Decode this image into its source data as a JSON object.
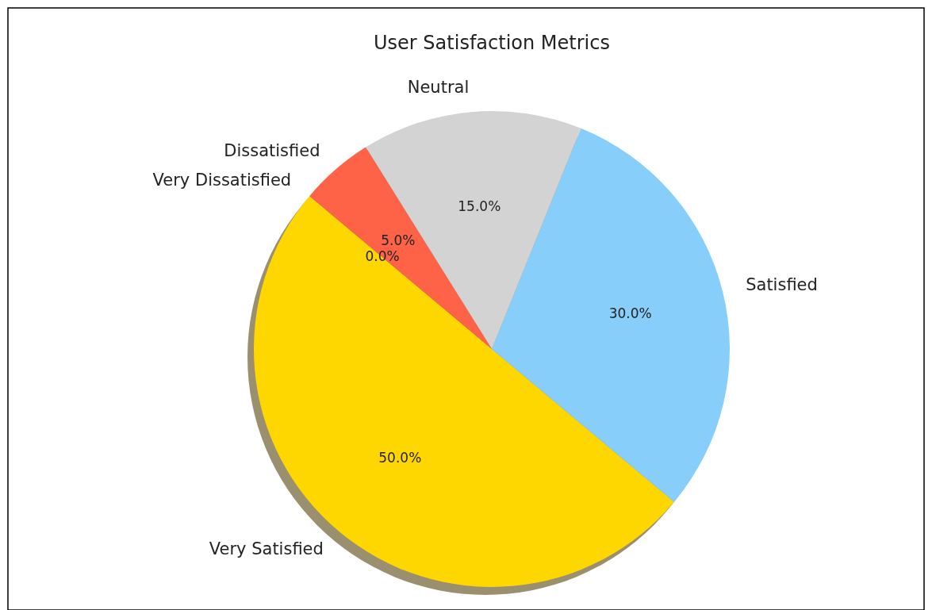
{
  "chart_data": {
    "type": "pie",
    "title": "User Satisfaction Metrics",
    "categories": [
      "Very Satisfied",
      "Satisfied",
      "Neutral",
      "Dissatisfied",
      "Very Dissatisfied"
    ],
    "values": [
      50,
      30,
      15,
      5,
      0
    ],
    "colors": [
      "#ffd700",
      "#87cefa",
      "#d3d3d3",
      "#ff6347",
      "#8b0000"
    ],
    "value_labels": [
      "50.0%",
      "30.0%",
      "15.0%",
      "5.0%",
      "0.0%"
    ]
  }
}
